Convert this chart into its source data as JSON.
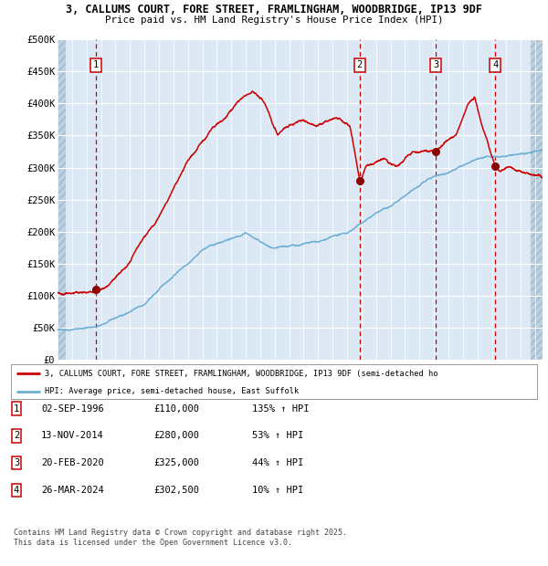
{
  "title_line1": "3, CALLUMS COURT, FORE STREET, FRAMLINGHAM, WOODBRIDGE, IP13 9DF",
  "title_line2": "Price paid vs. HM Land Registry's House Price Index (HPI)",
  "ylabel_ticks": [
    "£0",
    "£50K",
    "£100K",
    "£150K",
    "£200K",
    "£250K",
    "£300K",
    "£350K",
    "£400K",
    "£450K",
    "£500K"
  ],
  "ytick_values": [
    0,
    50000,
    100000,
    150000,
    200000,
    250000,
    300000,
    350000,
    400000,
    450000,
    500000
  ],
  "ylim": [
    0,
    500000
  ],
  "xlim_start": 1994.0,
  "xlim_end": 2027.5,
  "sale_markers": [
    {
      "label": "1",
      "date_num": 1996.67,
      "price": 110000
    },
    {
      "label": "2",
      "date_num": 2014.87,
      "price": 280000
    },
    {
      "label": "3",
      "date_num": 2020.13,
      "price": 325000
    },
    {
      "label": "4",
      "date_num": 2024.23,
      "price": 302500
    }
  ],
  "table_rows": [
    {
      "num": "1",
      "date": "02-SEP-1996",
      "price": "£110,000",
      "pct": "135% ↑ HPI"
    },
    {
      "num": "2",
      "date": "13-NOV-2014",
      "price": "£280,000",
      "pct": "53% ↑ HPI"
    },
    {
      "num": "3",
      "date": "20-FEB-2020",
      "price": "£325,000",
      "pct": "44% ↑ HPI"
    },
    {
      "num": "4",
      "date": "26-MAR-2024",
      "price": "£302,500",
      "pct": "10% ↑ HPI"
    }
  ],
  "legend_line1": "3, CALLUMS COURT, FORE STREET, FRAMLINGHAM, WOODBRIDGE, IP13 9DF (semi-detached ho",
  "legend_line2": "HPI: Average price, semi-detached house, East Suffolk",
  "footer1": "Contains HM Land Registry data © Crown copyright and database right 2025.",
  "footer2": "This data is licensed under the Open Government Licence v3.0.",
  "plot_bg": "#dce9f5",
  "hpi_color": "#6baed6",
  "price_color": "#cc0000",
  "marker_color": "#8b0000",
  "vline_color": "#cc0000",
  "grid_color": "#ffffff",
  "hatch_color": "#b8cfe0",
  "label_box_color": "#cc0000"
}
